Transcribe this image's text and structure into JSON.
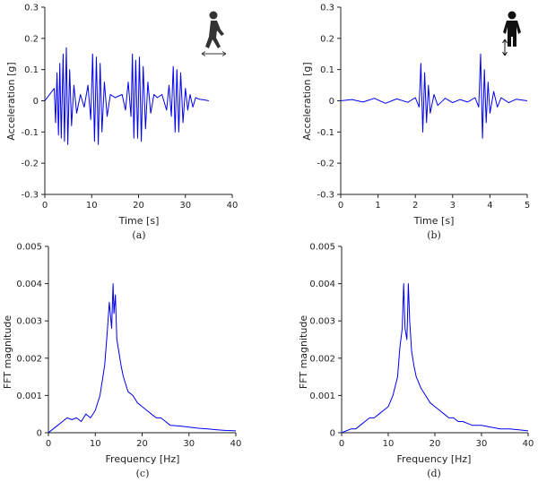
{
  "chart_data": [
    {
      "id": "a",
      "type": "line",
      "caption": "(a)",
      "xlabel": "Time [s]",
      "ylabel": "Acceleration [g]",
      "xlim": [
        0,
        40
      ],
      "ylim": [
        -0.3,
        0.3
      ],
      "xticks": [
        0,
        10,
        20,
        30,
        40
      ],
      "yticks": [
        -0.3,
        -0.2,
        -0.1,
        0,
        0.1,
        0.2,
        0.3
      ],
      "xtick_labels": [
        "0",
        "10",
        "20",
        "30",
        "40"
      ],
      "ytick_labels": [
        "-0.3",
        "-0.2",
        "-0.1",
        "0",
        "0.1",
        "0.2",
        "0.3"
      ],
      "grid": false,
      "line_color": "#0000ee",
      "icon": "walking-person-icon",
      "icon_arrow": "horizontal",
      "series": [
        {
          "x": [
            0,
            2.0,
            2.3,
            2.6,
            2.9,
            3.2,
            3.5,
            3.9,
            4.2,
            4.6,
            4.9,
            5.3,
            5.7,
            6.2,
            6.8,
            7.6,
            8.4,
            9.2,
            9.8,
            10.2,
            10.6,
            11.0,
            11.4,
            11.8,
            12.2,
            12.7,
            13.3,
            14.0,
            15.0,
            16.5,
            17.2,
            17.8,
            18.4,
            18.7,
            19.0,
            19.4,
            19.8,
            20.2,
            20.6,
            21.0,
            21.5,
            22.0,
            22.6,
            23.3,
            24.0,
            25.0,
            26.0,
            26.5,
            27.0,
            27.4,
            27.8,
            28.2,
            28.6,
            29.0,
            29.5,
            30.0,
            30.5,
            31.0,
            31.6,
            32.2,
            33.0,
            34.0,
            35.0
          ],
          "y": [
            0,
            0.04,
            -0.07,
            0.09,
            -0.11,
            0.12,
            -0.12,
            0.15,
            -0.13,
            0.17,
            -0.14,
            0.1,
            -0.08,
            0.05,
            -0.04,
            0.02,
            -0.02,
            0.05,
            -0.06,
            0.15,
            -0.13,
            0.14,
            -0.14,
            0.12,
            -0.1,
            0.06,
            -0.05,
            0.02,
            0.01,
            0.02,
            -0.03,
            0.06,
            -0.05,
            0.15,
            -0.12,
            0.13,
            -0.12,
            0.14,
            -0.13,
            0.11,
            -0.09,
            0.06,
            -0.04,
            0.02,
            0.01,
            0.02,
            -0.03,
            0.05,
            -0.05,
            0.11,
            -0.1,
            0.1,
            -0.1,
            0.09,
            -0.07,
            0.04,
            -0.03,
            0.02,
            -0.02,
            0.01,
            0.005,
            0.003,
            0
          ]
        }
      ]
    },
    {
      "id": "b",
      "type": "line",
      "caption": "(b)",
      "xlabel": "Time [s]",
      "ylabel": "Acceleration [g]",
      "xlim": [
        0,
        5
      ],
      "ylim": [
        -0.3,
        0.3
      ],
      "xticks": [
        0,
        1,
        2,
        3,
        4,
        5
      ],
      "yticks": [
        -0.3,
        -0.2,
        -0.1,
        0,
        0.1,
        0.2,
        0.3
      ],
      "xtick_labels": [
        "0",
        "1",
        "2",
        "3",
        "4",
        "5"
      ],
      "ytick_labels": [
        "-0.3",
        "-0.2",
        "-0.1",
        "0",
        "0.1",
        "0.2",
        "0.3"
      ],
      "grid": false,
      "line_color": "#0000ee",
      "icon": "standing-person-icon",
      "icon_arrow": "vertical",
      "series": [
        {
          "x": [
            0,
            0.3,
            0.6,
            0.9,
            1.2,
            1.5,
            1.8,
            2.0,
            2.1,
            2.15,
            2.2,
            2.25,
            2.3,
            2.35,
            2.4,
            2.5,
            2.6,
            2.8,
            3.0,
            3.2,
            3.4,
            3.6,
            3.7,
            3.75,
            3.8,
            3.85,
            3.9,
            3.95,
            4.0,
            4.1,
            4.2,
            4.3,
            4.5,
            4.7,
            5.0
          ],
          "y": [
            0,
            0.004,
            -0.004,
            0.008,
            -0.008,
            0.006,
            -0.005,
            0.01,
            -0.02,
            0.12,
            -0.1,
            0.09,
            -0.07,
            0.05,
            -0.04,
            0.02,
            -0.015,
            0.008,
            -0.006,
            0.004,
            -0.004,
            0.01,
            -0.02,
            0.15,
            -0.12,
            0.1,
            -0.07,
            0.06,
            -0.04,
            0.03,
            -0.02,
            0.01,
            -0.006,
            0.005,
            0
          ]
        }
      ]
    },
    {
      "id": "c",
      "type": "line",
      "caption": "(c)",
      "xlabel": "Frequency [Hz]",
      "ylabel": "FFT magnitude",
      "xlim": [
        0,
        40
      ],
      "ylim": [
        0,
        0.005
      ],
      "xticks": [
        0,
        10,
        20,
        30,
        40
      ],
      "yticks": [
        0,
        0.001,
        0.002,
        0.003,
        0.004,
        0.005
      ],
      "xtick_labels": [
        "0",
        "10",
        "20",
        "30",
        "40"
      ],
      "ytick_labels": [
        "0",
        "0.001",
        "0.002",
        "0.003",
        "0.004",
        "0.005"
      ],
      "grid": false,
      "line_color": "#0000ee",
      "series": [
        {
          "x": [
            0,
            1,
            2,
            3,
            4,
            5,
            6,
            7,
            8,
            9,
            10,
            11,
            11.5,
            12,
            12.5,
            13,
            13.5,
            13.8,
            14.0,
            14.3,
            14.6,
            15,
            15.5,
            16,
            16.5,
            17,
            18,
            19,
            20,
            21,
            22,
            23,
            24,
            25,
            26,
            28,
            30,
            32,
            34,
            36,
            38,
            40
          ],
          "y": [
            0,
            0.0001,
            0.0002,
            0.0003,
            0.0004,
            0.00035,
            0.0004,
            0.0003,
            0.0005,
            0.0004,
            0.0006,
            0.001,
            0.0014,
            0.0018,
            0.0026,
            0.0035,
            0.0028,
            0.004,
            0.0032,
            0.0037,
            0.0025,
            0.0022,
            0.0018,
            0.0015,
            0.0013,
            0.0011,
            0.001,
            0.0008,
            0.0007,
            0.0006,
            0.0005,
            0.0004,
            0.0004,
            0.0003,
            0.0002,
            0.00018,
            0.00015,
            0.00012,
            0.0001,
            8e-05,
            6e-05,
            5e-05
          ]
        }
      ]
    },
    {
      "id": "d",
      "type": "line",
      "caption": "(d)",
      "xlabel": "Frequency [Hz]",
      "ylabel": "FFT magnitude",
      "xlim": [
        0,
        40
      ],
      "ylim": [
        0,
        0.005
      ],
      "xticks": [
        0,
        10,
        20,
        30,
        40
      ],
      "yticks": [
        0,
        0.001,
        0.002,
        0.003,
        0.004,
        0.005
      ],
      "xtick_labels": [
        "0",
        "10",
        "20",
        "30",
        "40"
      ],
      "ytick_labels": [
        "0",
        "0.001",
        "0.002",
        "0.003",
        "0.004",
        "0.005"
      ],
      "grid": false,
      "line_color": "#0000ee",
      "series": [
        {
          "x": [
            0,
            1,
            2,
            3,
            4,
            5,
            6,
            7,
            8,
            9,
            10,
            11,
            12,
            12.5,
            13,
            13.3,
            13.6,
            14.0,
            14.3,
            14.6,
            15,
            15.5,
            16,
            17,
            18,
            19,
            20,
            21,
            22,
            23,
            24,
            25,
            26,
            28,
            30,
            32,
            34,
            36,
            38,
            40
          ],
          "y": [
            0,
            5e-05,
            0.0001,
            0.0001,
            0.0002,
            0.0003,
            0.0004,
            0.0004,
            0.0005,
            0.0006,
            0.0007,
            0.001,
            0.0015,
            0.0023,
            0.0028,
            0.004,
            0.0028,
            0.0025,
            0.004,
            0.003,
            0.0022,
            0.0018,
            0.0015,
            0.0012,
            0.001,
            0.0008,
            0.0007,
            0.0006,
            0.0005,
            0.0004,
            0.0004,
            0.0003,
            0.0003,
            0.0002,
            0.0002,
            0.00015,
            0.0001,
            0.0001,
            8e-05,
            5e-05
          ]
        }
      ]
    }
  ]
}
